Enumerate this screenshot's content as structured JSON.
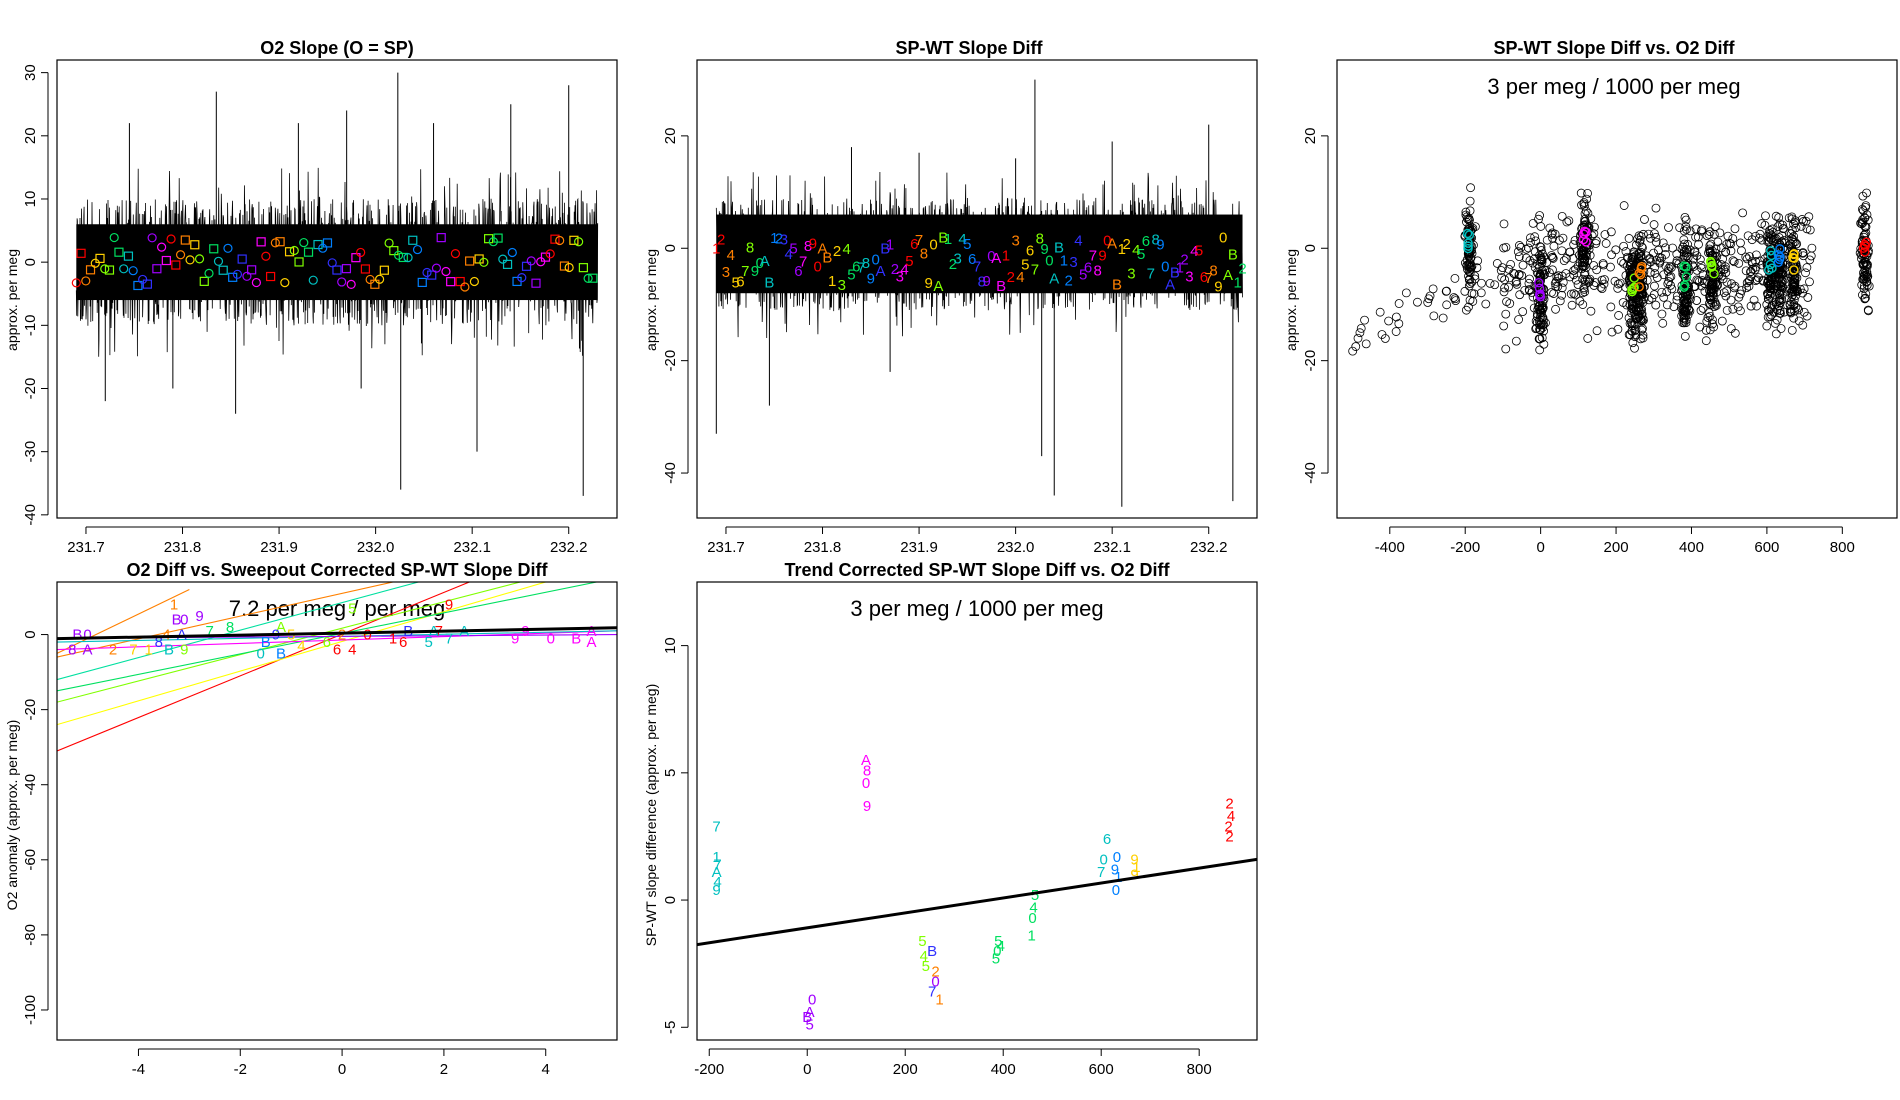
{
  "figure": {
    "width": 1900,
    "height": 1100
  },
  "chart_data": [
    {
      "id": "p1",
      "type": "line",
      "title": "O2 Slope (O = SP)",
      "xlabel": "",
      "ylabel": "approx. per meg",
      "xlim": [
        231.67,
        232.25
      ],
      "ylim": [
        -40.5,
        32
      ],
      "xticks": [
        231.7,
        231.8,
        231.9,
        232.0,
        232.1,
        232.2
      ],
      "xtick_labels": [
        "231.7",
        "231.8",
        "231.9",
        "232.0",
        "232.1",
        "232.2"
      ],
      "yticks": [
        -40,
        -30,
        -20,
        -10,
        0,
        10,
        20,
        30
      ],
      "ytick_labels": [
        "-40",
        "-30",
        "-20",
        "-10",
        "0",
        "10",
        "20",
        "30"
      ],
      "series": {
        "x_start": 231.69,
        "x_end": 232.23,
        "band_low": -6,
        "band_high": 6,
        "noise_half": 10,
        "spikes": [
          [
            231.72,
            -22
          ],
          [
            231.745,
            22
          ],
          [
            231.79,
            -20
          ],
          [
            231.835,
            27
          ],
          [
            231.855,
            -24
          ],
          [
            231.92,
            22
          ],
          [
            231.97,
            24
          ],
          [
            231.985,
            -20
          ],
          [
            232.023,
            30
          ],
          [
            232.026,
            -36
          ],
          [
            232.06,
            22
          ],
          [
            232.105,
            -30
          ],
          [
            232.14,
            25
          ],
          [
            232.2,
            28
          ],
          [
            232.215,
            -37
          ]
        ]
      },
      "markers": {
        "x_start": 231.69,
        "x_end": 232.225,
        "y_range": [
          -4,
          4
        ],
        "glyphs": [
          "o",
          "□",
          "o",
          "□"
        ],
        "colors": [
          "#FF0000",
          "#FF8000",
          "#FFD000",
          "#80FF00",
          "#00E060",
          "#00C0C0",
          "#0080FF",
          "#3030FF",
          "#A000FF",
          "#FF00FF"
        ]
      }
    },
    {
      "id": "p2",
      "type": "line",
      "title": "SP-WT Slope Diff",
      "xlabel": "",
      "ylabel": "approx. per meg",
      "xlim": [
        231.67,
        232.25
      ],
      "ylim": [
        -48,
        33.5
      ],
      "xticks": [
        231.7,
        231.8,
        231.9,
        232.0,
        232.1,
        232.2
      ],
      "xtick_labels": [
        "231.7",
        "231.8",
        "231.9",
        "232.0",
        "232.1",
        "232.2"
      ],
      "yticks": [
        -40,
        -20,
        0,
        20
      ],
      "ytick_labels": [
        "-40",
        "-20",
        "0",
        "20"
      ],
      "series": {
        "x_start": 231.69,
        "x_end": 232.235,
        "band_low": -8,
        "band_high": 6,
        "noise_half": 10,
        "spikes": [
          [
            231.69,
            -33
          ],
          [
            231.745,
            -28
          ],
          [
            231.83,
            18
          ],
          [
            231.87,
            -22
          ],
          [
            231.9,
            17
          ],
          [
            232.0,
            16
          ],
          [
            232.02,
            30
          ],
          [
            232.027,
            -37
          ],
          [
            232.04,
            -44
          ],
          [
            232.1,
            19
          ],
          [
            232.11,
            -46
          ],
          [
            232.2,
            22
          ],
          [
            232.225,
            -45
          ]
        ]
      },
      "markers": {
        "x_start": 231.69,
        "x_end": 232.235,
        "y_range": [
          -7,
          2
        ],
        "glyphs": [
          "1",
          "2",
          "3",
          "4",
          "5",
          "6",
          "7",
          "8",
          "9",
          "0",
          "A",
          "B"
        ],
        "colors": [
          "#FF0000",
          "#FF8000",
          "#FFD000",
          "#80FF00",
          "#00E060",
          "#00C0C0",
          "#0080FF",
          "#3030FF",
          "#A000FF",
          "#FF00FF"
        ]
      }
    },
    {
      "id": "p3",
      "type": "scatter",
      "title": "SP-WT Slope Diff vs. O2 Diff",
      "annotation": "3 per meg / 1000 per meg",
      "xlabel": "",
      "ylabel": "approx. per meg",
      "xlim": [
        -540,
        945
      ],
      "ylim": [
        -48,
        33.5
      ],
      "xticks": [
        -400,
        -200,
        0,
        200,
        400,
        600,
        800
      ],
      "xtick_labels": [
        "-400",
        "-200",
        "0",
        "200",
        "400",
        "600",
        "800"
      ],
      "yticks": [
        -40,
        -20,
        0,
        20
      ],
      "ytick_labels": [
        "-40",
        "-20",
        "0",
        "20"
      ],
      "clusters": [
        [
          -190,
          1,
          "#00C0C0"
        ],
        [
          0,
          -7,
          "#A000FF"
        ],
        [
          118,
          2,
          "#FF00FF"
        ],
        [
          245,
          -6,
          "#80FF00"
        ],
        [
          265,
          -5,
          "#FF8000"
        ],
        [
          385,
          -5,
          "#00E060"
        ],
        [
          455,
          -3,
          "#80FF00"
        ],
        [
          610,
          -2,
          "#00C0C0"
        ],
        [
          635,
          -2,
          "#0080FF"
        ],
        [
          670,
          -2,
          "#FFD000"
        ],
        [
          860,
          1,
          "#FF0000"
        ]
      ]
    },
    {
      "id": "p4",
      "type": "line",
      "title": "O2 Diff vs. Sweepout Corrected SP-WT Slope Diff",
      "annotation": "7.2 per meg / per meg",
      "xlabel": "",
      "ylabel": "O2 anomaly (approx. per meg)",
      "xlim": [
        -5.6,
        5.4
      ],
      "ylim": [
        -108,
        14
      ],
      "xticks": [
        -4,
        -2,
        0,
        2,
        4
      ],
      "xtick_labels": [
        "-4",
        "-2",
        "0",
        "2",
        "4"
      ],
      "yticks": [
        -100,
        -80,
        -60,
        -40,
        -20,
        0
      ],
      "ytick_labels": [
        "-100",
        "-80",
        "-60",
        "-40",
        "-20",
        "0"
      ],
      "fit": [
        [
          -5.6,
          -1.1
        ],
        [
          5.4,
          1.8
        ]
      ],
      "fan_lines": [
        [
          -5.6,
          -31,
          2.5,
          14,
          "#FF0000"
        ],
        [
          -5.6,
          -24,
          4.0,
          14,
          "#FFFF00"
        ],
        [
          -5.6,
          -18,
          3.5,
          14,
          "#80FF00"
        ],
        [
          -5.6,
          -15,
          5.0,
          14,
          "#00E060"
        ],
        [
          -5.6,
          -12,
          1.5,
          14,
          "#00E0A0"
        ],
        [
          -5.6,
          -6,
          1.0,
          14,
          "#FF8000"
        ],
        [
          -5.6,
          -5,
          -3.0,
          12,
          "#FF8000"
        ],
        [
          -5.6,
          -4,
          5.4,
          1,
          "#FF00FF"
        ],
        [
          -5.6,
          -2,
          5.4,
          1,
          "#00C0C0"
        ],
        [
          -5.6,
          -1,
          5.4,
          0,
          "#A000FF"
        ]
      ],
      "labels": [
        [
          "1",
          -3.3,
          8,
          "#FF8000"
        ],
        [
          "B",
          -3.25,
          4,
          "#A000FF"
        ],
        [
          "0",
          -3.1,
          4,
          "#A000FF"
        ],
        [
          "9",
          -2.8,
          5,
          "#A000FF"
        ],
        [
          "4",
          -3.45,
          0,
          "#FF8000"
        ],
        [
          "A",
          -3.15,
          0,
          "#3030FF"
        ],
        [
          "7",
          -2.6,
          1,
          "#00E060"
        ],
        [
          "8",
          -2.2,
          2,
          "#00E060"
        ],
        [
          "A",
          -1.2,
          2,
          "#80FF00"
        ],
        [
          "5",
          0.2,
          7,
          "#80FF00"
        ],
        [
          "B",
          -1.5,
          -2,
          "#0080FF"
        ],
        [
          "5",
          -1.0,
          0,
          "#FFD000"
        ],
        [
          "9",
          -1.3,
          0,
          "#3030FF"
        ],
        [
          "0",
          -1.6,
          -5,
          "#00C0C0"
        ],
        [
          "B",
          -1.2,
          -5,
          "#0080FF"
        ],
        [
          "4",
          -0.8,
          -3,
          "#FFD000"
        ],
        [
          "6",
          -0.3,
          -2,
          "#80FF00"
        ],
        [
          "2",
          0.0,
          0,
          "#FF8000"
        ],
        [
          "0",
          0.5,
          0,
          "#FF0000"
        ],
        [
          "6",
          -0.1,
          -4,
          "#FF0000"
        ],
        [
          "4",
          0.2,
          -4,
          "#FF0000"
        ],
        [
          "1",
          1.0,
          -1,
          "#FF0000"
        ],
        [
          "6",
          1.2,
          -2,
          "#FF0000"
        ],
        [
          "B",
          1.3,
          1,
          "#3030FF"
        ],
        [
          "9",
          2.1,
          8,
          "#FF0000"
        ],
        [
          "7",
          1.9,
          1,
          "#FF0000"
        ],
        [
          "A",
          1.8,
          1,
          "#00C0C0"
        ],
        [
          "5",
          1.7,
          -2,
          "#00C0C0"
        ],
        [
          "A",
          2.4,
          1,
          "#00C0C0"
        ],
        [
          "7",
          2.1,
          -1,
          "#00C0C0"
        ],
        [
          "9",
          3.6,
          1,
          "#FF00FF"
        ],
        [
          "9",
          3.4,
          -1,
          "#FF00FF"
        ],
        [
          "0",
          4.1,
          -1,
          "#FF00FF"
        ],
        [
          "B",
          4.6,
          -1,
          "#FF00FF"
        ],
        [
          "A",
          4.9,
          1,
          "#FF00FF"
        ],
        [
          "A",
          4.9,
          -2,
          "#FF00FF"
        ],
        [
          "B",
          -5.2,
          0,
          "#A000FF"
        ],
        [
          "0",
          -5.0,
          0,
          "#A000FF"
        ],
        [
          "A",
          -5.0,
          -4,
          "#A000FF"
        ],
        [
          "8",
          -5.3,
          -4,
          "#A000FF"
        ],
        [
          "2",
          -4.5,
          -4,
          "#FF8000"
        ],
        [
          "7",
          -4.1,
          -4,
          "#FFD000"
        ],
        [
          "1",
          -3.8,
          -4,
          "#FFD000"
        ],
        [
          "8",
          -3.6,
          -2,
          "#3030FF"
        ],
        [
          "B",
          -3.4,
          -4,
          "#00C0C0"
        ],
        [
          "9",
          -3.1,
          -4,
          "#80FF00"
        ]
      ]
    },
    {
      "id": "p5",
      "type": "scatter",
      "title": "Trend Corrected SP-WT Slope Diff vs. O2 Diff",
      "annotation": "3 per meg / 1000 per meg",
      "xlabel": "",
      "ylabel": "SP-WT slope difference (approx. per meg)",
      "xlim": [
        -225,
        918
      ],
      "ylim": [
        -5.5,
        12.5
      ],
      "xticks": [
        -200,
        0,
        200,
        400,
        600,
        800
      ],
      "xtick_labels": [
        "-200",
        "0",
        "200",
        "400",
        "600",
        "800"
      ],
      "yticks": [
        -5,
        0,
        5,
        10
      ],
      "ytick_labels": [
        "-5",
        "0",
        "5",
        "10"
      ],
      "fit": [
        [
          -225,
          -1.75
        ],
        [
          918,
          1.6
        ]
      ],
      "labels": [
        [
          "7",
          -185,
          2.9,
          "#00C0C0"
        ],
        [
          "1",
          -185,
          1.7,
          "#00C0C0"
        ],
        [
          "7",
          -183,
          1.4,
          "#00C0C0"
        ],
        [
          "A",
          -185,
          1.1,
          "#00C0C0"
        ],
        [
          "4",
          -183,
          0.7,
          "#00C0C0"
        ],
        [
          "9",
          -185,
          0.4,
          "#00C0C0"
        ],
        [
          "0",
          10,
          -3.9,
          "#A000FF"
        ],
        [
          "A",
          5,
          -4.4,
          "#A000FF"
        ],
        [
          "B",
          0,
          -4.6,
          "#A000FF"
        ],
        [
          "5",
          5,
          -4.9,
          "#A000FF"
        ],
        [
          "A",
          120,
          5.5,
          "#FF00FF"
        ],
        [
          "8",
          122,
          5.1,
          "#FF00FF"
        ],
        [
          "0",
          120,
          4.6,
          "#FF00FF"
        ],
        [
          "9",
          122,
          3.7,
          "#FF00FF"
        ],
        [
          "5",
          235,
          -1.6,
          "#80FF00"
        ],
        [
          "4",
          238,
          -2.2,
          "#80FF00"
        ],
        [
          "5",
          242,
          -2.6,
          "#80FF00"
        ],
        [
          "B",
          255,
          -2.0,
          "#3030FF"
        ],
        [
          "2",
          262,
          -2.8,
          "#FF8000"
        ],
        [
          "0",
          262,
          -3.2,
          "#A000FF"
        ],
        [
          "7",
          255,
          -3.6,
          "#3030FF"
        ],
        [
          "1",
          270,
          -3.9,
          "#FF8000"
        ],
        [
          "5",
          390,
          -1.6,
          "#00E060"
        ],
        [
          "4",
          395,
          -1.8,
          "#00E060"
        ],
        [
          "0",
          388,
          -2.0,
          "#00E060"
        ],
        [
          "5",
          385,
          -2.3,
          "#00E060"
        ],
        [
          "5",
          465,
          0.2,
          "#00E060"
        ],
        [
          "4",
          462,
          -0.3,
          "#00E060"
        ],
        [
          "0",
          460,
          -0.7,
          "#00E060"
        ],
        [
          "1",
          458,
          -1.4,
          "#00E060"
        ],
        [
          "6",
          612,
          2.4,
          "#00C0C0"
        ],
        [
          "0",
          605,
          1.6,
          "#00C0C0"
        ],
        [
          "7",
          600,
          1.1,
          "#00C0C0"
        ],
        [
          "0",
          632,
          1.7,
          "#0080FF"
        ],
        [
          "9",
          628,
          1.2,
          "#0080FF"
        ],
        [
          "1",
          635,
          0.9,
          "#0080FF"
        ],
        [
          "0",
          630,
          0.4,
          "#0080FF"
        ],
        [
          "9",
          668,
          1.6,
          "#FFD000"
        ],
        [
          "1",
          672,
          1.3,
          "#FFD000"
        ],
        [
          "9",
          668,
          1.0,
          "#FFD000"
        ],
        [
          "2",
          862,
          3.8,
          "#FF0000"
        ],
        [
          "4",
          865,
          3.3,
          "#FF0000"
        ],
        [
          "2",
          860,
          2.9,
          "#FF0000"
        ],
        [
          "2",
          862,
          2.5,
          "#FF0000"
        ]
      ]
    }
  ]
}
